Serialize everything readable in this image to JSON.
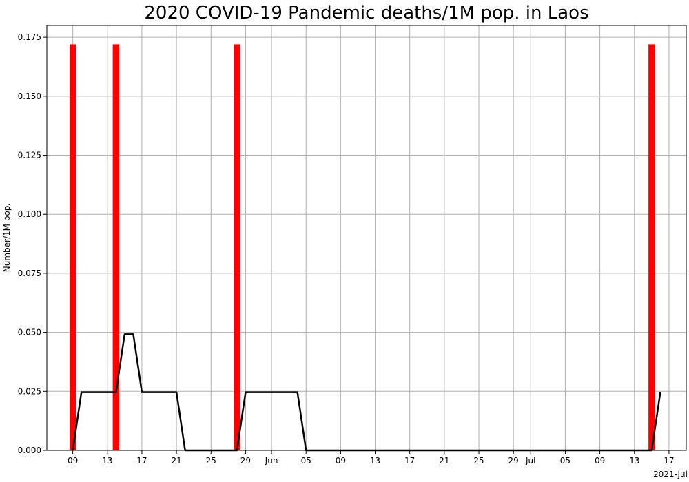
{
  "chart_data": {
    "type": "bar",
    "title": "2020 COVID-19 Pandemic deaths/1M pop. in Laos",
    "ylabel": "Number/1M pop.",
    "xlabel": "",
    "date_range": [
      "2021-05-06",
      "2021-07-19"
    ],
    "ylim": [
      0,
      0.18
    ],
    "yticks": [
      0,
      0.025,
      0.05,
      0.075,
      0.1,
      0.125,
      0.15,
      0.175
    ],
    "ytick_labels": [
      "0.000",
      "0.025",
      "0.050",
      "0.075",
      "0.100",
      "0.125",
      "0.150",
      "0.175"
    ],
    "xticks": [
      {
        "date": "2021-05-09",
        "label": "09"
      },
      {
        "date": "2021-05-13",
        "label": "13"
      },
      {
        "date": "2021-05-17",
        "label": "17"
      },
      {
        "date": "2021-05-21",
        "label": "21"
      },
      {
        "date": "2021-05-25",
        "label": "25"
      },
      {
        "date": "2021-05-29",
        "label": "29"
      },
      {
        "date": "2021-06-01",
        "label": "Jun"
      },
      {
        "date": "2021-06-05",
        "label": "05"
      },
      {
        "date": "2021-06-09",
        "label": "09"
      },
      {
        "date": "2021-06-13",
        "label": "13"
      },
      {
        "date": "2021-06-17",
        "label": "17"
      },
      {
        "date": "2021-06-21",
        "label": "21"
      },
      {
        "date": "2021-06-25",
        "label": "25"
      },
      {
        "date": "2021-06-29",
        "label": "29"
      },
      {
        "date": "2021-07-01",
        "label": "Jul"
      },
      {
        "date": "2021-07-05",
        "label": "05"
      },
      {
        "date": "2021-07-09",
        "label": "09"
      },
      {
        "date": "2021-07-13",
        "label": "13"
      },
      {
        "date": "2021-07-17",
        "label": "17"
      }
    ],
    "offset_label": "2021-Jul",
    "grid": true,
    "series": [
      {
        "type": "bar",
        "color": "#ff0000",
        "points": [
          {
            "x": "2021-05-09",
            "y": 0.172
          },
          {
            "x": "2021-05-14",
            "y": 0.172
          },
          {
            "x": "2021-05-28",
            "y": 0.172
          },
          {
            "x": "2021-07-15",
            "y": 0.172
          }
        ]
      },
      {
        "type": "line",
        "color": "#000000",
        "points": [
          {
            "x": "2021-05-09",
            "y": 0
          },
          {
            "x": "2021-05-10",
            "y": 0.0246
          },
          {
            "x": "2021-05-11",
            "y": 0.0246
          },
          {
            "x": "2021-05-12",
            "y": 0.0246
          },
          {
            "x": "2021-05-13",
            "y": 0.0246
          },
          {
            "x": "2021-05-14",
            "y": 0.0246
          },
          {
            "x": "2021-05-15",
            "y": 0.0492
          },
          {
            "x": "2021-05-16",
            "y": 0.0492
          },
          {
            "x": "2021-05-17",
            "y": 0.0246
          },
          {
            "x": "2021-05-18",
            "y": 0.0246
          },
          {
            "x": "2021-05-19",
            "y": 0.0246
          },
          {
            "x": "2021-05-20",
            "y": 0.0246
          },
          {
            "x": "2021-05-21",
            "y": 0.0246
          },
          {
            "x": "2021-05-22",
            "y": 0
          },
          {
            "x": "2021-05-27",
            "y": 0
          },
          {
            "x": "2021-05-28",
            "y": 0
          },
          {
            "x": "2021-05-29",
            "y": 0.0246
          },
          {
            "x": "2021-05-30",
            "y": 0.0246
          },
          {
            "x": "2021-06-01",
            "y": 0.0246
          },
          {
            "x": "2021-06-03",
            "y": 0.0246
          },
          {
            "x": "2021-06-04",
            "y": 0.0246
          },
          {
            "x": "2021-06-05",
            "y": 0
          },
          {
            "x": "2021-07-10",
            "y": 0
          },
          {
            "x": "2021-07-15",
            "y": 0
          },
          {
            "x": "2021-07-16",
            "y": 0.0246
          }
        ]
      }
    ]
  }
}
